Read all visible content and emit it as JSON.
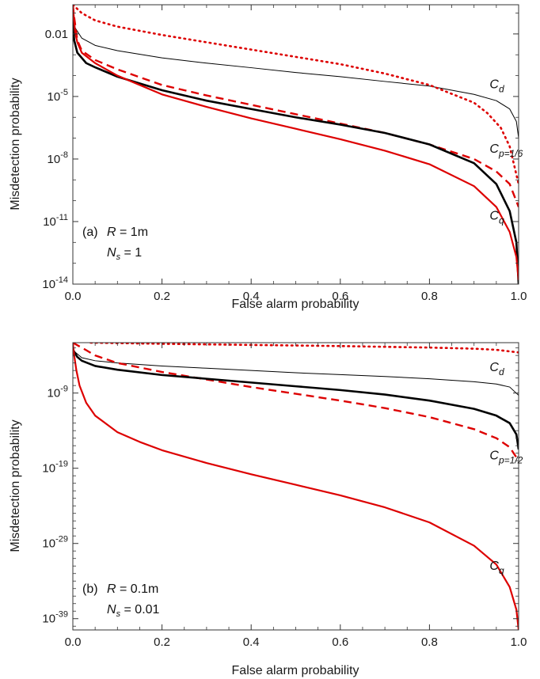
{
  "chart_data": [
    {
      "type": "line",
      "panel_label": "(a)",
      "params": [
        {
          "name": "R",
          "value": "1m"
        },
        {
          "name": "N_s",
          "value": "1"
        }
      ],
      "xlabel": "False alarm probability",
      "ylabel": "Misdetection probability",
      "xlim": [
        0,
        1
      ],
      "ylim_log10": [
        -14,
        -0.6
      ],
      "yscale": "log",
      "x_ticks": [
        "0.0",
        "0.2",
        "0.4",
        "0.6",
        "0.8",
        "1.0"
      ],
      "y_ticks": [
        {
          "mant": "0.01",
          "exp": ""
        },
        {
          "mant": "10",
          "exp": "-5"
        },
        {
          "mant": "10",
          "exp": "-8"
        },
        {
          "mant": "10",
          "exp": "-11"
        },
        {
          "mant": "10",
          "exp": "-14"
        }
      ],
      "y_tick_log10": [
        -2,
        -5,
        -8,
        -11,
        -14
      ],
      "series": [
        {
          "color": "#000000",
          "style": "thin",
          "x": [
            0.0,
            0.005,
            0.02,
            0.05,
            0.1,
            0.2,
            0.3,
            0.4,
            0.5,
            0.6,
            0.7,
            0.8,
            0.9,
            0.95,
            0.98,
            0.995,
            1.0
          ],
          "y_log10": [
            -1.1,
            -1.7,
            -2.2,
            -2.55,
            -2.8,
            -3.15,
            -3.4,
            -3.62,
            -3.85,
            -4.05,
            -4.28,
            -4.5,
            -4.9,
            -5.2,
            -5.6,
            -6.2,
            -7.0
          ]
        },
        {
          "color": "#000000",
          "style": "thick",
          "x": [
            0.0,
            0.003,
            0.01,
            0.03,
            0.05,
            0.1,
            0.2,
            0.3,
            0.4,
            0.5,
            0.6,
            0.7,
            0.8,
            0.9,
            0.95,
            0.98,
            0.995,
            1.0
          ],
          "y_log10": [
            -1.3,
            -2.3,
            -2.9,
            -3.4,
            -3.6,
            -4.05,
            -4.7,
            -5.2,
            -5.6,
            -6.0,
            -6.35,
            -6.75,
            -7.3,
            -8.2,
            -9.2,
            -10.5,
            -12.0,
            -14.0
          ]
        },
        {
          "color": "#dd0000",
          "style": "dashed",
          "x": [
            0.0,
            0.003,
            0.01,
            0.02,
            0.05,
            0.1,
            0.2,
            0.3,
            0.4,
            0.5,
            0.6,
            0.7,
            0.8,
            0.9,
            0.95,
            0.98,
            1.0
          ],
          "y_log10": [
            -0.6,
            -1.2,
            -2.3,
            -2.8,
            -3.25,
            -3.7,
            -4.45,
            -4.95,
            -5.4,
            -5.85,
            -6.3,
            -6.75,
            -7.3,
            -8.0,
            -8.6,
            -9.2,
            -10.3
          ]
        },
        {
          "color": "#dd0000",
          "style": "dotted",
          "x": [
            0.0,
            0.01,
            0.02,
            0.05,
            0.1,
            0.2,
            0.3,
            0.4,
            0.5,
            0.6,
            0.7,
            0.8,
            0.9,
            0.93,
            0.96,
            0.98,
            1.0
          ],
          "y_log10": [
            -0.6,
            -0.8,
            -1.0,
            -1.35,
            -1.65,
            -2.05,
            -2.4,
            -2.75,
            -3.1,
            -3.45,
            -3.9,
            -4.45,
            -5.3,
            -5.8,
            -6.5,
            -7.4,
            -9.2
          ]
        },
        {
          "color": "#dd0000",
          "style": "solid",
          "x": [
            0.0,
            0.005,
            0.01,
            0.02,
            0.05,
            0.1,
            0.2,
            0.3,
            0.4,
            0.5,
            0.6,
            0.7,
            0.8,
            0.9,
            0.95,
            0.98,
            0.995,
            1.0
          ],
          "y_log10": [
            -0.6,
            -1.9,
            -2.4,
            -2.9,
            -3.4,
            -4.0,
            -4.9,
            -5.5,
            -6.05,
            -6.55,
            -7.05,
            -7.6,
            -8.25,
            -9.3,
            -10.3,
            -11.5,
            -12.7,
            -13.8
          ]
        }
      ],
      "curve_labels": [
        {
          "base": "C",
          "sub": "d",
          "x": 0.935,
          "y_log10": -4.6
        },
        {
          "base": "C",
          "sub": "p=1/6",
          "x": 0.935,
          "y_log10": -7.7
        },
        {
          "base": "C",
          "sub": "q",
          "x": 0.935,
          "y_log10": -10.9
        }
      ]
    },
    {
      "type": "line",
      "panel_label": "(b)",
      "params": [
        {
          "name": "R",
          "value": "0.1m"
        },
        {
          "name": "N_s",
          "value": "0.01"
        }
      ],
      "xlabel": "False alarm probability",
      "ylabel": "Misdetection probability",
      "xlim": [
        0,
        1
      ],
      "ylim_log10": [
        -40.5,
        -2.3
      ],
      "yscale": "log",
      "x_ticks": [
        "0.0",
        "0.2",
        "0.4",
        "0.6",
        "0.8",
        "1.0"
      ],
      "y_ticks": [
        {
          "mant": "10",
          "exp": "-9"
        },
        {
          "mant": "10",
          "exp": "-19"
        },
        {
          "mant": "10",
          "exp": "-29"
        },
        {
          "mant": "10",
          "exp": "-39"
        }
      ],
      "y_tick_log10": [
        -9,
        -19,
        -29,
        -39
      ],
      "series": [
        {
          "color": "#000000",
          "style": "thin",
          "x": [
            0.0,
            0.02,
            0.05,
            0.1,
            0.2,
            0.3,
            0.4,
            0.5,
            0.6,
            0.7,
            0.8,
            0.9,
            0.95,
            0.98,
            1.0
          ],
          "y_log10": [
            -3.3,
            -4.3,
            -4.7,
            -5.0,
            -5.4,
            -5.7,
            -6.0,
            -6.3,
            -6.55,
            -6.8,
            -7.1,
            -7.5,
            -7.8,
            -8.2,
            -9.3
          ]
        },
        {
          "color": "#000000",
          "style": "thick",
          "x": [
            0.0,
            0.01,
            0.02,
            0.05,
            0.1,
            0.2,
            0.3,
            0.4,
            0.5,
            0.6,
            0.7,
            0.8,
            0.9,
            0.95,
            0.98,
            0.995,
            1.0
          ],
          "y_log10": [
            -3.2,
            -4.2,
            -4.7,
            -5.4,
            -5.9,
            -6.6,
            -7.1,
            -7.6,
            -8.1,
            -8.6,
            -9.2,
            -10.0,
            -11.1,
            -12.0,
            -13.0,
            -14.5,
            -16.5
          ]
        },
        {
          "color": "#dd0000",
          "style": "dashed",
          "x": [
            0.0,
            0.03,
            0.05,
            0.1,
            0.2,
            0.3,
            0.4,
            0.5,
            0.6,
            0.7,
            0.8,
            0.9,
            0.95,
            0.98,
            1.0
          ],
          "y_log10": [
            -2.3,
            -3.3,
            -4.0,
            -5.0,
            -6.2,
            -7.2,
            -8.2,
            -9.1,
            -10.0,
            -11.0,
            -12.2,
            -13.8,
            -15.0,
            -16.2,
            -18.0
          ]
        },
        {
          "color": "#dd0000",
          "style": "dotted",
          "x": [
            0.04,
            0.2,
            0.4,
            0.6,
            0.8,
            0.9,
            0.95,
            1.0
          ],
          "y_log10": [
            -2.3,
            -2.45,
            -2.6,
            -2.75,
            -2.95,
            -3.1,
            -3.25,
            -3.6
          ]
        },
        {
          "color": "#dd0000",
          "style": "solid",
          "x": [
            0.0,
            0.003,
            0.008,
            0.015,
            0.03,
            0.05,
            0.1,
            0.15,
            0.2,
            0.3,
            0.4,
            0.5,
            0.6,
            0.7,
            0.8,
            0.9,
            0.95,
            0.98,
            0.995,
            1.0
          ],
          "y_log10": [
            -2.3,
            -4.0,
            -6.0,
            -8.0,
            -10.3,
            -12.0,
            -14.2,
            -15.5,
            -16.6,
            -18.3,
            -19.8,
            -21.2,
            -22.6,
            -24.2,
            -26.2,
            -29.3,
            -31.8,
            -34.8,
            -37.8,
            -40.5
          ]
        }
      ],
      "curve_labels": [
        {
          "base": "C",
          "sub": "d",
          "x": 0.935,
          "y_log10": -6.1
        },
        {
          "base": "C",
          "sub": "p=1/2",
          "x": 0.935,
          "y_log10": -17.8
        },
        {
          "base": "C",
          "sub": "q",
          "x": 0.935,
          "y_log10": -32.5
        }
      ]
    }
  ]
}
